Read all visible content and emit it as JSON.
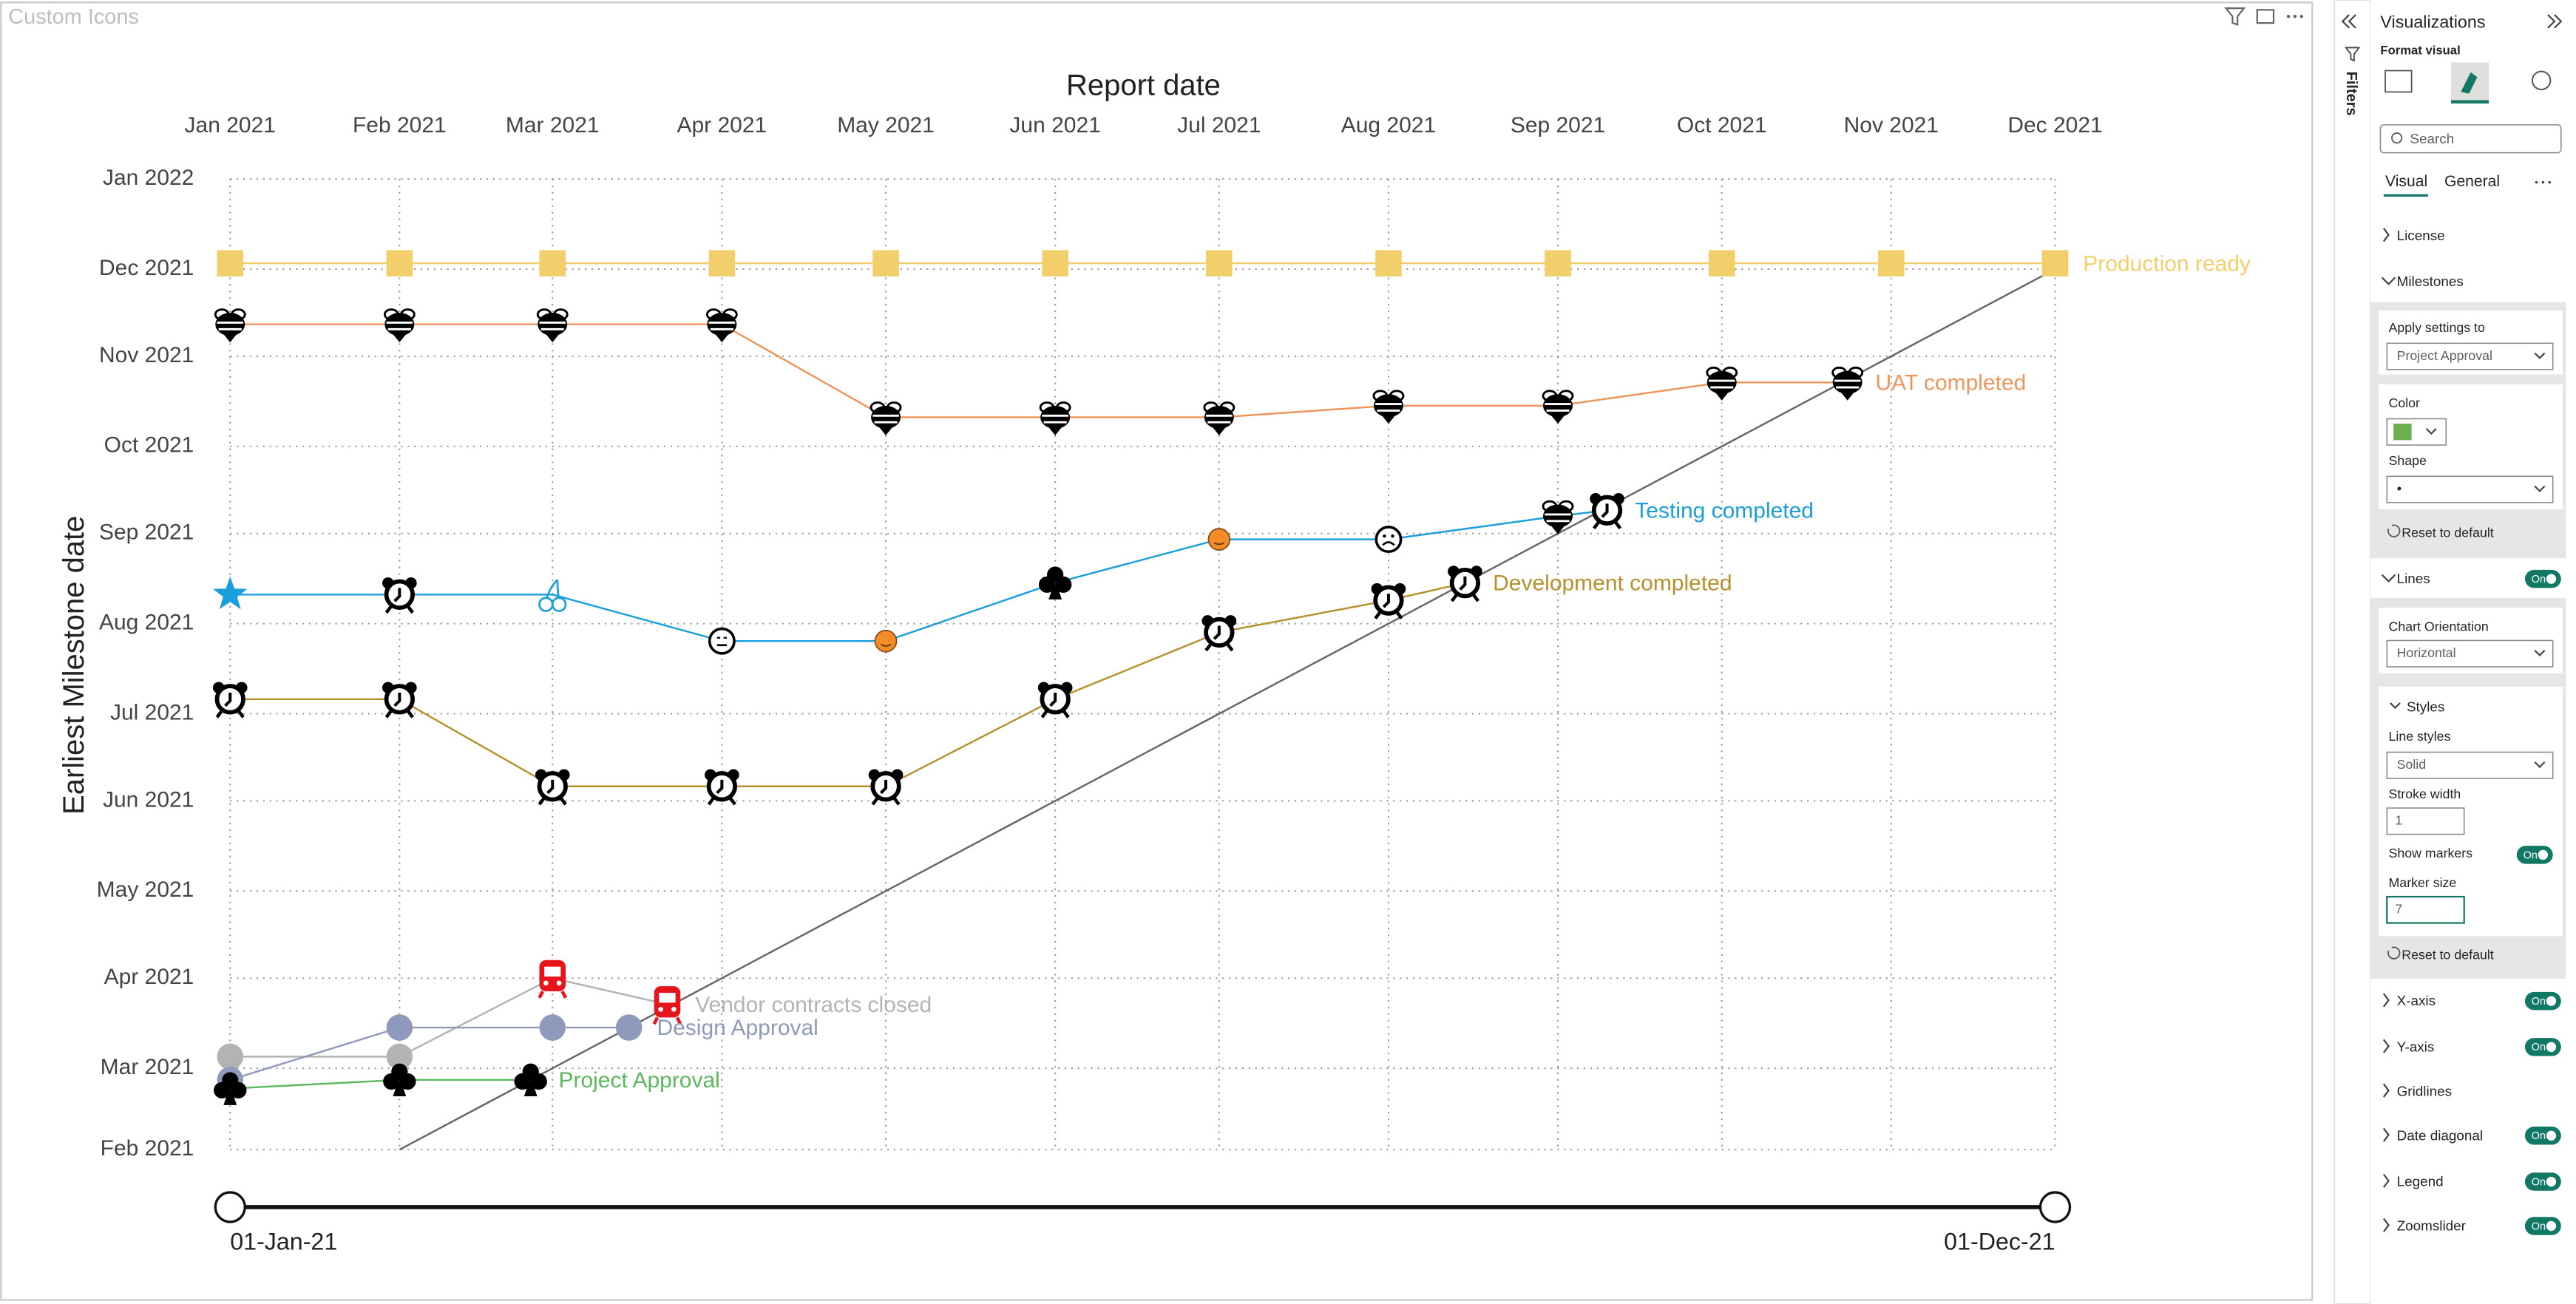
{
  "chart_data": {
    "type": "line",
    "title": "Custom Icons",
    "xlabel": "Report date",
    "ylabel": "Earliest Milestone date",
    "xlim": [
      "2021-01-01",
      "2021-12-01"
    ],
    "ylim": [
      "2021-02-01",
      "2022-01-01"
    ],
    "xticks": [
      {
        "value": "2021-01-01",
        "label": "Jan 2021"
      },
      {
        "value": "2021-02-01",
        "label": "Feb 2021"
      },
      {
        "value": "2021-03-01",
        "label": "Mar 2021"
      },
      {
        "value": "2021-04-01",
        "label": "Apr 2021"
      },
      {
        "value": "2021-05-01",
        "label": "May 2021"
      },
      {
        "value": "2021-06-01",
        "label": "Jun 2021"
      },
      {
        "value": "2021-07-01",
        "label": "Jul 2021"
      },
      {
        "value": "2021-08-01",
        "label": "Aug 2021"
      },
      {
        "value": "2021-09-01",
        "label": "Sep 2021"
      },
      {
        "value": "2021-10-01",
        "label": "Oct 2021"
      },
      {
        "value": "2021-11-01",
        "label": "Nov 2021"
      },
      {
        "value": "2021-12-01",
        "label": "Dec 2021"
      }
    ],
    "yticks": [
      {
        "value": "2021-02-01",
        "label": "Feb 2021"
      },
      {
        "value": "2021-03-01",
        "label": "Mar 2021"
      },
      {
        "value": "2021-04-01",
        "label": "Apr 2021"
      },
      {
        "value": "2021-05-01",
        "label": "May 2021"
      },
      {
        "value": "2021-06-01",
        "label": "Jun 2021"
      },
      {
        "value": "2021-07-01",
        "label": "Jul 2021"
      },
      {
        "value": "2021-08-01",
        "label": "Aug 2021"
      },
      {
        "value": "2021-09-01",
        "label": "Sep 2021"
      },
      {
        "value": "2021-10-01",
        "label": "Oct 2021"
      },
      {
        "value": "2021-11-01",
        "label": "Nov 2021"
      },
      {
        "value": "2021-12-01",
        "label": "Dec 2021"
      },
      {
        "value": "2022-01-01",
        "label": "Jan 2022"
      }
    ],
    "grid": true,
    "date_diagonal": true,
    "series": [
      {
        "name": "Production ready",
        "color": "#f2cf6a",
        "x": [
          "2021-01-01",
          "2021-02-01",
          "2021-03-01",
          "2021-04-01",
          "2021-05-01",
          "2021-06-01",
          "2021-07-01",
          "2021-08-01",
          "2021-09-01",
          "2021-10-01",
          "2021-11-01",
          "2021-12-01"
        ],
        "values": [
          "2021-12-03",
          "2021-12-03",
          "2021-12-03",
          "2021-12-03",
          "2021-12-03",
          "2021-12-03",
          "2021-12-03",
          "2021-12-03",
          "2021-12-03",
          "2021-12-03",
          "2021-12-03",
          "2021-12-03"
        ],
        "markers": [
          "square",
          "square",
          "square",
          "square",
          "square",
          "square",
          "square",
          "square",
          "square",
          "square",
          "square",
          "square"
        ]
      },
      {
        "name": "UAT completed",
        "color": "#f0955a",
        "x": [
          "2021-01-01",
          "2021-02-01",
          "2021-03-01",
          "2021-04-01",
          "2021-05-01",
          "2021-06-01",
          "2021-07-01",
          "2021-08-01",
          "2021-09-01",
          "2021-10-01",
          "2021-10-24"
        ],
        "values": [
          "2021-11-12",
          "2021-11-12",
          "2021-11-12",
          "2021-11-12",
          "2021-10-11",
          "2021-10-11",
          "2021-10-11",
          "2021-10-15",
          "2021-10-15",
          "2021-10-23",
          "2021-10-23"
        ],
        "markers": [
          "bee",
          "bee",
          "bee",
          "bee",
          "bee",
          "bee",
          "bee",
          "bee",
          "bee",
          "bee",
          "bee"
        ]
      },
      {
        "name": "Testing completed",
        "color": "#1a9fdc",
        "x": [
          "2021-01-01",
          "2021-02-01",
          "2021-03-01",
          "2021-04-01",
          "2021-05-01",
          "2021-06-01",
          "2021-07-01",
          "2021-08-01",
          "2021-09-01",
          "2021-09-10"
        ],
        "values": [
          "2021-08-11",
          "2021-08-11",
          "2021-08-11",
          "2021-07-26",
          "2021-07-26",
          "2021-08-15",
          "2021-08-30",
          "2021-08-30",
          "2021-09-07",
          "2021-09-09"
        ],
        "markers": [
          "star",
          "alarm",
          "cherry",
          "face",
          "smiley",
          "clubs",
          "smiley",
          "frown",
          "bee",
          "alarm"
        ]
      },
      {
        "name": "Development completed",
        "color": "#b5912c",
        "x": [
          "2021-01-01",
          "2021-02-01",
          "2021-03-01",
          "2021-04-01",
          "2021-05-01",
          "2021-06-01",
          "2021-07-01",
          "2021-08-01",
          "2021-08-15"
        ],
        "values": [
          "2021-07-06",
          "2021-07-06",
          "2021-06-06",
          "2021-06-06",
          "2021-06-06",
          "2021-07-06",
          "2021-07-29",
          "2021-08-09",
          "2021-08-15"
        ],
        "markers": [
          "alarm",
          "alarm",
          "alarm",
          "alarm",
          "alarm",
          "alarm",
          "alarm",
          "alarm",
          "alarm"
        ]
      },
      {
        "name": "Vendor contracts closed",
        "color": "#b3b3b3",
        "x": [
          "2021-01-01",
          "2021-02-01",
          "2021-03-01",
          "2021-03-22"
        ],
        "values": [
          "2021-03-05",
          "2021-03-05",
          "2021-04-01",
          "2021-03-23"
        ],
        "markers": [
          "circle",
          "circle",
          "train",
          "train"
        ]
      },
      {
        "name": "Design Approval",
        "color": "#8f99bb",
        "x": [
          "2021-01-01",
          "2021-02-01",
          "2021-03-01",
          "2021-03-15"
        ],
        "values": [
          "2021-02-25",
          "2021-03-15",
          "2021-03-15",
          "2021-03-15"
        ],
        "markers": [
          "circle",
          "circle",
          "circle",
          "circle"
        ]
      },
      {
        "name": "Project Approval",
        "color": "#5cb85c",
        "x": [
          "2021-01-01",
          "2021-02-01",
          "2021-02-25"
        ],
        "values": [
          "2021-02-22",
          "2021-02-25",
          "2021-02-25"
        ],
        "markers": [
          "clubs",
          "clubs",
          "clubs"
        ]
      }
    ],
    "zoomslider": {
      "start_label": "01-Jan-21",
      "end_label": "01-Dec-21"
    }
  },
  "panel": {
    "filters": "Filters",
    "title": "Visualizations",
    "subtitle": "Format visual",
    "search": "Search",
    "tabs": [
      "Visual",
      "General"
    ],
    "sections": [
      {
        "name": "License"
      },
      {
        "name": "Milestones"
      },
      {
        "name": "Lines",
        "toggle": "On"
      },
      {
        "name": "X-axis",
        "toggle": "On"
      },
      {
        "name": "Y-axis",
        "toggle": "On"
      },
      {
        "name": "Gridlines"
      },
      {
        "name": "Date diagonal",
        "toggle": "On"
      },
      {
        "name": "Legend",
        "toggle": "On"
      },
      {
        "name": "Zoomslider",
        "toggle": "On"
      }
    ],
    "milestones": {
      "apply_label": "Apply settings to",
      "apply_value": "Project Approval",
      "color_label": "Color",
      "color": "#6ab04c",
      "shape_label": "Shape",
      "shape_value": "•",
      "reset": "Reset to default"
    },
    "lines": {
      "orientation_label": "Chart Orientation",
      "orientation_value": "Horizontal",
      "styles": "Styles",
      "line_styles_label": "Line styles",
      "line_styles_value": "Solid",
      "stroke_width_label": "Stroke width",
      "stroke_width_value": "1",
      "show_markers_label": "Show markers",
      "show_markers_toggle": "On",
      "marker_size_label": "Marker size",
      "marker_size_value": "7",
      "reset": "Reset to default"
    }
  }
}
